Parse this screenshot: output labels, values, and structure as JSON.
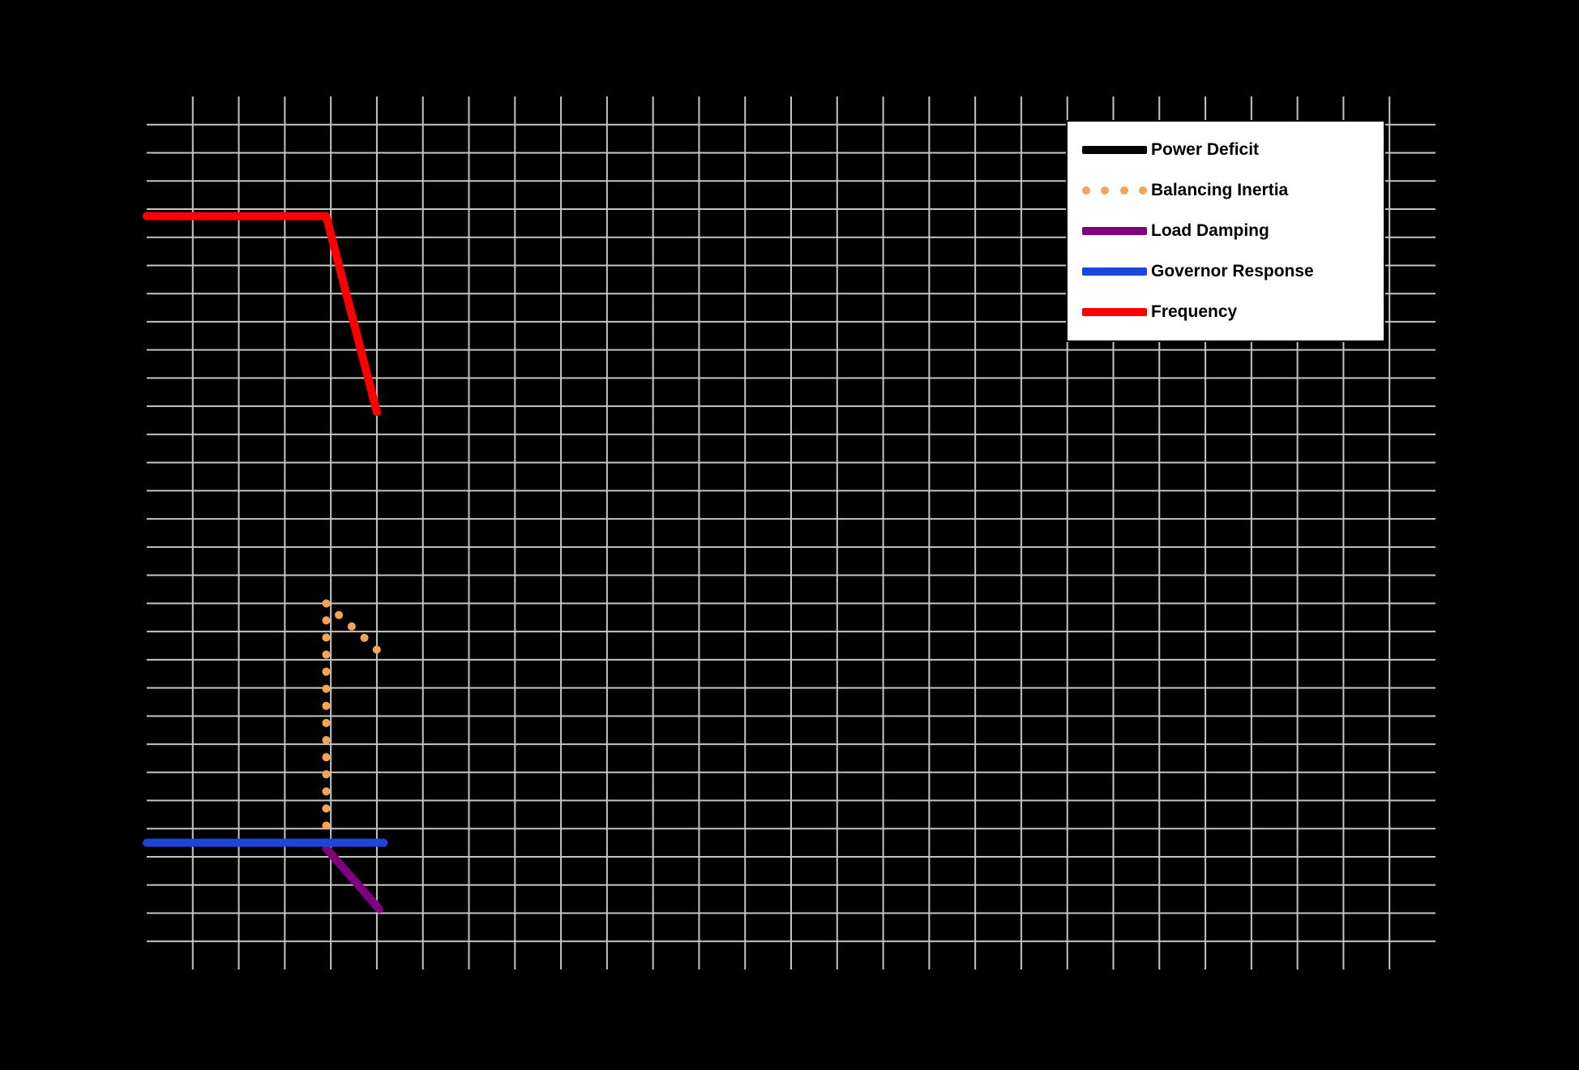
{
  "figure": {
    "background_color": "#000000",
    "grid_color": "#c4c4c4"
  },
  "chart_data": {
    "type": "line",
    "title": "",
    "xlabel": "",
    "ylabel": "",
    "tick_labels_visible": false,
    "units": "grid-line indices (no tick labels are visible; values estimated from gridlines, y measured from bottom gridline)",
    "xlim": [
      0,
      28
    ],
    "ylim": [
      0,
      31
    ],
    "grid": true,
    "legend_position": "upper-right",
    "series": [
      {
        "name": "Power Deficit",
        "color": "#000000",
        "style": "solid",
        "points": []
      },
      {
        "name": "Balancing Inertia",
        "color": "#f7a356",
        "style": "dotted",
        "points": [
          [
            3.9,
            4.5
          ],
          [
            3.9,
            13.0
          ],
          [
            4.3,
            12.4
          ],
          [
            4.65,
            11.9
          ],
          [
            5.0,
            11.35
          ]
        ]
      },
      {
        "name": "Load Damping",
        "color": "#800080",
        "style": "solid",
        "points": [
          [
            3.9,
            4.3
          ],
          [
            5.05,
            2.15
          ]
        ]
      },
      {
        "name": "Governor Response",
        "color": "#1e44d8",
        "style": "solid",
        "points": [
          [
            0,
            4.5
          ],
          [
            5.15,
            4.5
          ]
        ]
      },
      {
        "name": "Frequency",
        "color": "#ff0000",
        "style": "solid",
        "points": [
          [
            0,
            26.75
          ],
          [
            3.9,
            26.75
          ],
          [
            5.0,
            19.8
          ]
        ]
      }
    ]
  }
}
